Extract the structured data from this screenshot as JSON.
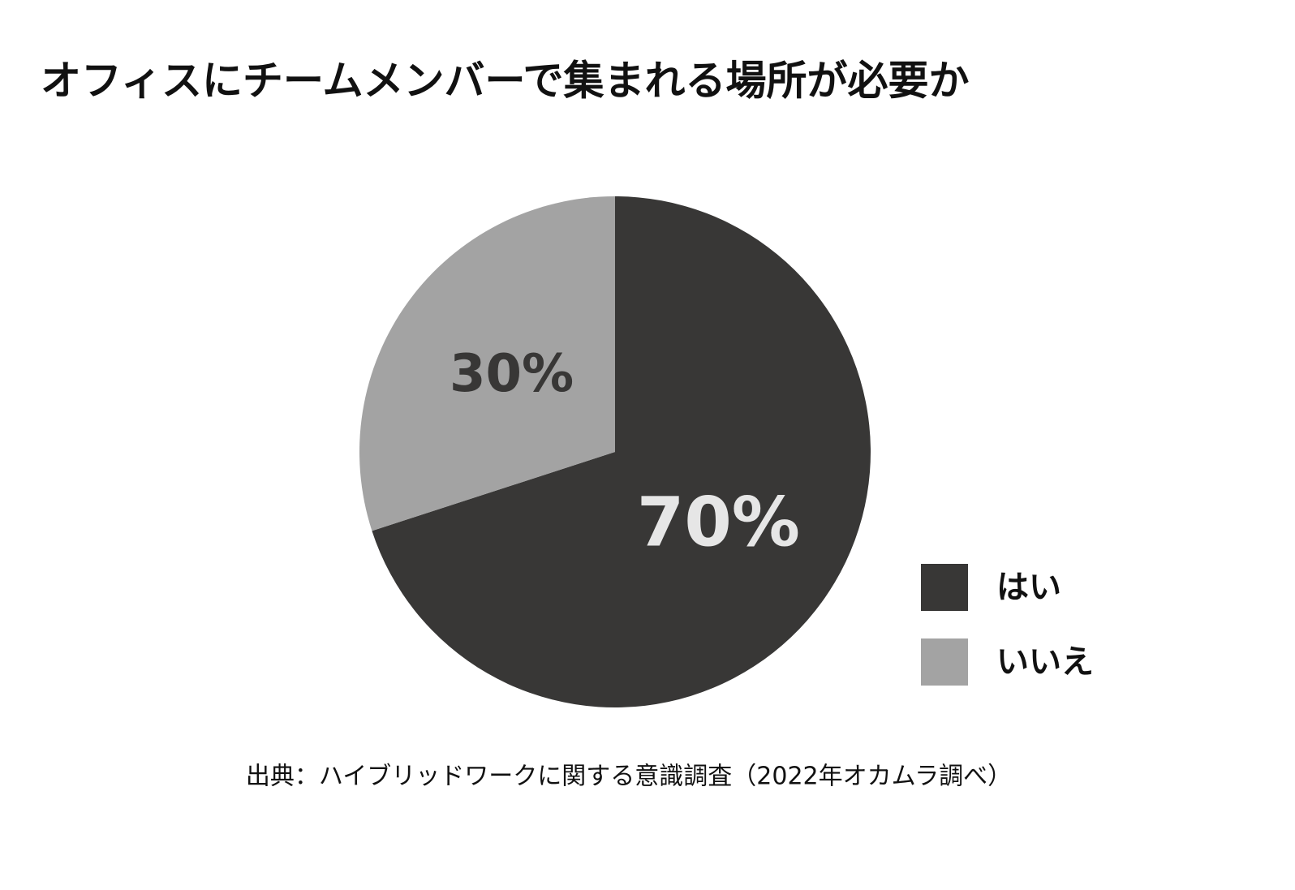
{
  "chart_data": {
    "type": "pie",
    "title": "オフィスにチームメンバーで集まれる場所が必要か",
    "categories": [
      "はい",
      "いいえ"
    ],
    "values": [
      70,
      30
    ],
    "value_labels": [
      "70%",
      "30%"
    ],
    "colors": [
      "#383736",
      "#a3a3a3"
    ],
    "label_colors": [
      "#e6e6e6",
      "#383736"
    ],
    "legend": "right",
    "source": "出典：ハイブリッドワークに関する意識調査（2022年オカムラ調べ）"
  }
}
